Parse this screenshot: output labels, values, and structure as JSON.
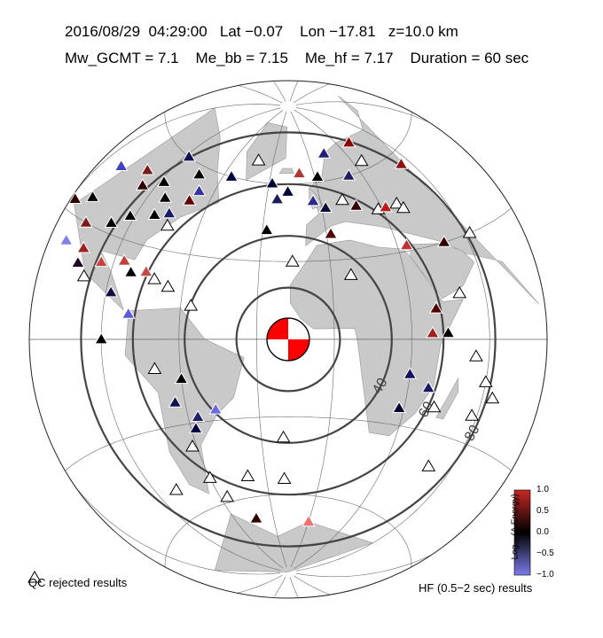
{
  "header": {
    "line1": "2016/08/29  04:29:00   Lat −0.07    Lon −17.81   z=10.0 km",
    "line2": "Mw_GCMT = 7.1    Me_bb = 7.15    Me_hf = 7.17    Duration = 60 sec"
  },
  "distance_rings": [
    {
      "deg": 20,
      "label": ""
    },
    {
      "deg": 40,
      "label": "40"
    },
    {
      "deg": 60,
      "label": "60"
    },
    {
      "deg": 80,
      "label": "80"
    }
  ],
  "legend": {
    "qc_label": "QC rejected results",
    "hf_label": "HF (0.5−2 sec) results"
  },
  "colorbar": {
    "title": "Log₁₀ (Δ Energy)",
    "ticks": [
      "1.0",
      "0.5",
      "0.0",
      "−0.5",
      "−1.0"
    ],
    "colors": {
      "high": "#c62828",
      "mid": "#000000",
      "low": "#7b7ce8"
    }
  },
  "colors": {
    "ocean": "#ffffff",
    "land": "#c8c8c8",
    "ring": "#444444",
    "mechanism_red": "#ff0000"
  },
  "stations": [
    {
      "lon": -10,
      "lat": 64,
      "c": "#b23535"
    },
    {
      "lon": 14,
      "lat": 70,
      "c": "#20207a"
    },
    {
      "lon": 2,
      "lat": 62,
      "c": "#000000"
    },
    {
      "lon": -28,
      "lat": 60,
      "c": "#000033"
    },
    {
      "lon": -42,
      "lat": 68,
      "c": "#ffffff"
    },
    {
      "lon": -18,
      "lat": 57,
      "c": "#00003a"
    },
    {
      "lon": -24,
      "lat": 54,
      "c": "#1a1a5c"
    },
    {
      "lon": -4,
      "lat": 53,
      "c": "#2a2a8a"
    },
    {
      "lon": 40,
      "lat": 70,
      "c": "#8b0000"
    },
    {
      "lon": 36,
      "lat": 63,
      "c": "#ffffff"
    },
    {
      "lon": 22,
      "lat": 60,
      "c": "#202060"
    },
    {
      "lon": 55,
      "lat": 56,
      "c": "#8b1010"
    },
    {
      "lon": -55,
      "lat": 60,
      "c": "#00003a"
    },
    {
      "lon": -74,
      "lat": 57,
      "c": "#000000"
    },
    {
      "lon": -88,
      "lat": 60,
      "c": "#101050"
    },
    {
      "lon": -68,
      "lat": 52,
      "c": "#3535a0"
    },
    {
      "lon": -88,
      "lat": 50,
      "c": "#000000"
    },
    {
      "lon": -70,
      "lat": 48,
      "c": "#600000"
    },
    {
      "lon": -82,
      "lat": 46,
      "c": "#000000"
    },
    {
      "lon": -100,
      "lat": 50,
      "c": "#7a1a1a"
    },
    {
      "lon": -96,
      "lat": 46,
      "c": "#300000"
    },
    {
      "lon": -76,
      "lat": 42,
      "c": "#1a1a6a"
    },
    {
      "lon": -82,
      "lat": 40,
      "c": "#000000"
    },
    {
      "lon": -112,
      "lat": 46,
      "c": "#4040c0"
    },
    {
      "lon": -92,
      "lat": 37,
      "c": "#000000"
    },
    {
      "lon": -98,
      "lat": 33,
      "c": "#000000"
    },
    {
      "lon": -112,
      "lat": 36,
      "c": "#000000"
    },
    {
      "lon": -108,
      "lat": 30,
      "c": "#7a1a1a"
    },
    {
      "lon": -118,
      "lat": 33,
      "c": "#300000"
    },
    {
      "lon": -104,
      "lat": 24,
      "c": "#a02020"
    },
    {
      "lon": -112,
      "lat": 24,
      "c": "#8080e8"
    },
    {
      "lon": -95,
      "lat": 22,
      "c": "#c84040"
    },
    {
      "lon": -86,
      "lat": 24,
      "c": "#c04040"
    },
    {
      "lon": -82,
      "lat": 21,
      "c": "#000000"
    },
    {
      "lon": -76,
      "lat": 22,
      "c": "#c04848"
    },
    {
      "lon": -72,
      "lat": 20,
      "c": "#ffffff"
    },
    {
      "lon": -66,
      "lat": 18,
      "c": "#ffffff"
    },
    {
      "lon": -100,
      "lat": 17,
      "c": "#ffffff"
    },
    {
      "lon": -104,
      "lat": 20,
      "c": "#200020"
    },
    {
      "lon": -88,
      "lat": 14,
      "c": "#101040"
    },
    {
      "lon": -80,
      "lat": 8,
      "c": "#5a5ad8"
    },
    {
      "lon": -90,
      "lat": 0,
      "c": "#000000"
    },
    {
      "lon": -56,
      "lat": 12,
      "c": "#ffffff"
    },
    {
      "lon": -28,
      "lat": 42,
      "c": "#000000"
    },
    {
      "lon": -74,
      "lat": 38,
      "c": "#ffffff"
    },
    {
      "lon": -16,
      "lat": 30,
      "c": "#ffffff"
    },
    {
      "lon": 2,
      "lat": 40,
      "c": "#500000"
    },
    {
      "lon": 2,
      "lat": 50,
      "c": "#0a0a3a"
    },
    {
      "lon": 18,
      "lat": 49,
      "c": "#300000"
    },
    {
      "lon": 12,
      "lat": 52,
      "c": "#ffffff"
    },
    {
      "lon": 28,
      "lat": 46,
      "c": "#ffffff"
    },
    {
      "lon": 32,
      "lat": 46,
      "c": "#b81a1a"
    },
    {
      "lon": 38,
      "lat": 46,
      "c": "#ffffff"
    },
    {
      "lon": 40,
      "lat": 44,
      "c": "#ffffff"
    },
    {
      "lon": 34,
      "lat": 32,
      "c": "#c03030"
    },
    {
      "lon": 50,
      "lat": 30,
      "c": "#300000"
    },
    {
      "lon": 62,
      "lat": 30,
      "c": "#ffffff"
    },
    {
      "lon": 8,
      "lat": 24,
      "c": "#ffffff"
    },
    {
      "lon": 40,
      "lat": 10,
      "c": "#500000"
    },
    {
      "lon": 38,
      "lat": 2,
      "c": "#a02020"
    },
    {
      "lon": 44,
      "lat": 2,
      "c": "#000000"
    },
    {
      "lon": 50,
      "lat": 14,
      "c": "#ffffff"
    },
    {
      "lon": 55,
      "lat": -5,
      "c": "#ffffff"
    },
    {
      "lon": 30,
      "lat": -12,
      "c": "#101060"
    },
    {
      "lon": 38,
      "lat": -16,
      "c": "#1a1a60"
    },
    {
      "lon": 28,
      "lat": -24,
      "c": "#000030"
    },
    {
      "lon": 42,
      "lat": -22,
      "c": "#ffffff"
    },
    {
      "lon": 60,
      "lat": -12,
      "c": "#ffffff"
    },
    {
      "lon": 64,
      "lat": -16,
      "c": "#ffffff"
    },
    {
      "lon": 58,
      "lat": -22,
      "c": "#ffffff"
    },
    {
      "lon": 50,
      "lat": -40,
      "c": "#ffffff"
    },
    {
      "lon": -70,
      "lat": -10,
      "c": "#ffffff"
    },
    {
      "lon": -60,
      "lat": -14,
      "c": "#000000"
    },
    {
      "lon": -64,
      "lat": -22,
      "c": "#101050"
    },
    {
      "lon": -56,
      "lat": -28,
      "c": "#20206a"
    },
    {
      "lon": -48,
      "lat": -26,
      "c": "#6a6ae0"
    },
    {
      "lon": -58,
      "lat": -32,
      "c": "#000040"
    },
    {
      "lon": -62,
      "lat": -38,
      "c": "#ffffff"
    },
    {
      "lon": -20,
      "lat": -38,
      "c": "#ffffff"
    },
    {
      "lon": -60,
      "lat": -50,
      "c": "#ffffff"
    },
    {
      "lon": -40,
      "lat": -52,
      "c": "#ffffff"
    },
    {
      "lon": -20,
      "lat": -54,
      "c": "#ffffff"
    },
    {
      "lon": -56,
      "lat": -58,
      "c": "#ffffff"
    },
    {
      "lon": -44,
      "lat": -68,
      "c": "#300000"
    },
    {
      "lon": 0,
      "lat": -70,
      "c": "#f07070"
    },
    {
      "lon": -80,
      "lat": -50,
      "c": "#ffffff"
    }
  ]
}
